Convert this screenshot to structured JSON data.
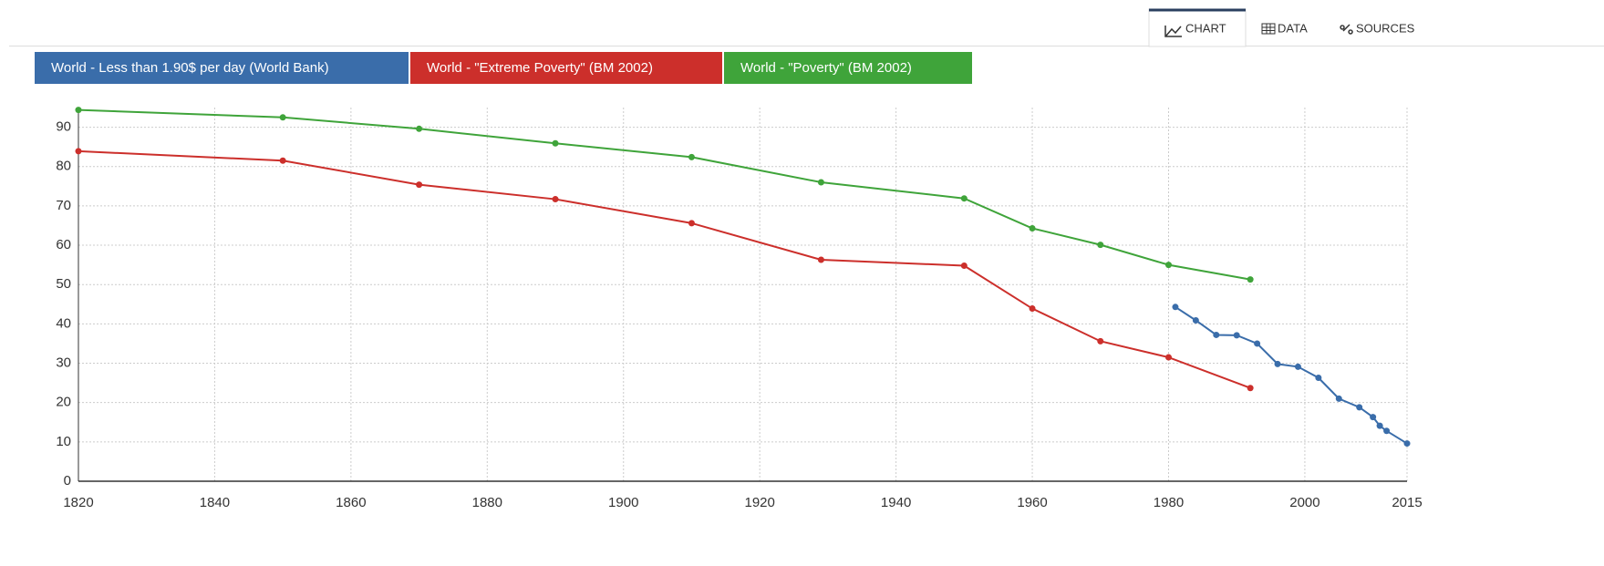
{
  "tabs": [
    "CHART",
    "DATA",
    "SOURCES"
  ],
  "chart_data": {
    "type": "line",
    "xlim": [
      1820,
      2015
    ],
    "xticks": [
      1820,
      1840,
      1860,
      1880,
      1900,
      1920,
      1940,
      1960,
      1980,
      2000,
      2015
    ],
    "ylim": [
      0,
      95
    ],
    "yticks": [
      0,
      10,
      20,
      30,
      40,
      50,
      60,
      70,
      80,
      90
    ],
    "grid": true,
    "series": [
      {
        "name": "World - Less than 1.90$ per day (World Bank)",
        "color": "#3a6daa",
        "x": [
          1981,
          1984,
          1987,
          1990,
          1993,
          1996,
          1999,
          2002,
          2005,
          2008,
          2010,
          2011,
          2012,
          2015
        ],
        "values": [
          44.3,
          40.9,
          37.2,
          37.1,
          35.0,
          29.8,
          29.1,
          26.3,
          21.0,
          18.8,
          16.3,
          14.1,
          12.8,
          9.6
        ]
      },
      {
        "name": "World - \"Extreme Poverty\" (BM 2002)",
        "color": "#cc2f2b",
        "x": [
          1820,
          1850,
          1870,
          1890,
          1910,
          1929,
          1950,
          1960,
          1970,
          1980,
          1992
        ],
        "values": [
          83.9,
          81.5,
          75.4,
          71.7,
          65.6,
          56.3,
          54.8,
          43.9,
          35.6,
          31.5,
          23.7
        ]
      },
      {
        "name": "World - \"Poverty\" (BM 2002)",
        "color": "#3fa43a",
        "x": [
          1820,
          1850,
          1870,
          1890,
          1910,
          1929,
          1950,
          1960,
          1970,
          1980,
          1992
        ],
        "values": [
          94.4,
          92.5,
          89.6,
          85.9,
          82.4,
          76.0,
          71.9,
          64.3,
          60.1,
          55.0,
          51.3
        ]
      }
    ]
  }
}
